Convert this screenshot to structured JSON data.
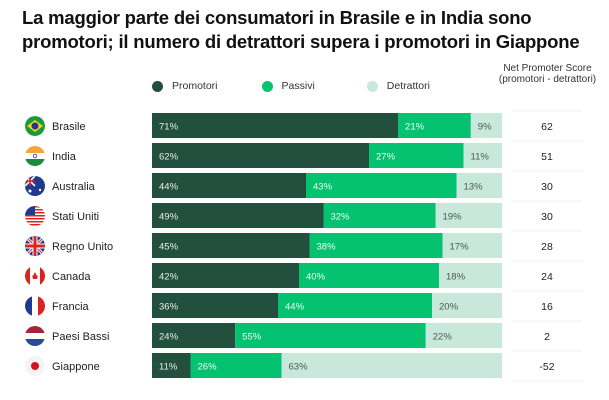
{
  "title": "La maggior parte dei consumatori in Brasile e in India sono promotori; il numero di detrattori supera i promotori in Giappone",
  "colors": {
    "Promotori": "#234f3e",
    "Passivi": "#05c270",
    "Detrattori": "#c8e8dc"
  },
  "chart_data": {
    "type": "bar",
    "stacked": true,
    "orientation": "horizontal",
    "title": "La maggior parte dei consumatori in Brasile e in India sono promotori; il numero di detrattori supera i promotori in Giappone",
    "legend": "top",
    "categories": [
      "Brasile",
      "India",
      "Australia",
      "Stati Uniti",
      "Regno Unito",
      "Canada",
      "Francia",
      "Paesi Bassi",
      "Giappone"
    ],
    "flags": [
      "br",
      "in",
      "au",
      "us",
      "gb",
      "ca",
      "fr",
      "nl",
      "jp"
    ],
    "series": [
      {
        "name": "Promotori",
        "values": [
          71,
          62,
          44,
          49,
          45,
          42,
          36,
          24,
          11
        ]
      },
      {
        "name": "Passivi",
        "values": [
          21,
          27,
          43,
          32,
          38,
          40,
          44,
          55,
          26
        ]
      },
      {
        "name": "Detrattori",
        "values": [
          9,
          11,
          13,
          19,
          17,
          18,
          20,
          22,
          63
        ]
      }
    ],
    "value_suffix": "%",
    "nps_header": "Net Promoter Score (promotori - detrattori)",
    "nps": [
      62,
      51,
      30,
      30,
      28,
      24,
      16,
      2,
      -52
    ]
  }
}
